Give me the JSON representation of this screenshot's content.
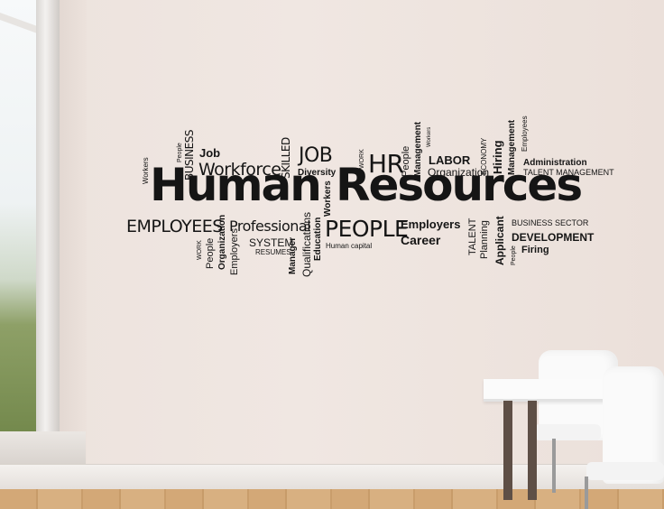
{
  "scene": {
    "description_colors": {
      "wall": "#eee4df",
      "decal": "#151515",
      "floor": "#d3a877"
    }
  },
  "decal": {
    "main_left": "Human",
    "main_right": "Resources",
    "words": {
      "workers_small": "Workers",
      "people_tiny": "People",
      "business": "BUSINESS",
      "job_small": "Job",
      "workforce": "Workforce",
      "skilled": "SKILLED",
      "job_big": "JOB",
      "diversity": "Diversity",
      "work_tiny": "WORK",
      "hr": "HR",
      "people_v": "People",
      "management_v": "Management",
      "workers_tiny": "Workers",
      "labor": "LABOR",
      "organization": "Organization",
      "economy": "ECONOMY",
      "hiring": "Hiring",
      "management_v2": "Management",
      "employees_tiny": "Employees",
      "administration": "Administration",
      "talent_management": "TALENT MANAGEMENT",
      "employees_big": "EMPLOYEES",
      "professional": "Professional",
      "system": "SYSTEM",
      "resumes": "RESUMES",
      "work_tiny2": "WORK",
      "people_v2": "People",
      "organization_v": "Organization",
      "employers_v": "Employers",
      "manager": "Manager",
      "qualifications": "Qualifications",
      "education": "Education",
      "workers_v": "Workers",
      "people_big": "PEOPLE",
      "human_capital": "Human capital",
      "employers": "Employers",
      "career": "Career",
      "talent": "TALENT",
      "planning": "Planning",
      "applicant": "Applicant",
      "people_tiny2": "People",
      "business_sector": "BUSINESS SECTOR",
      "development": "DEVELOPMENT",
      "firing": "Firing"
    }
  }
}
